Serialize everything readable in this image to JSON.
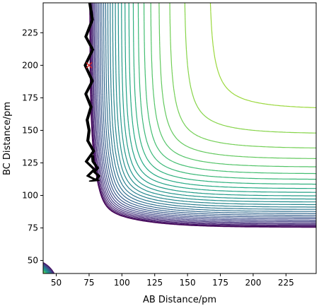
{
  "chart_data": {
    "type": "contour",
    "title": "",
    "xlabel": "AB Distance/pm",
    "ylabel": "BC Distance/pm",
    "xlim": [
      40,
      248
    ],
    "ylim": [
      40,
      248
    ],
    "xticks": [
      "50",
      "75",
      "100",
      "125",
      "150",
      "175",
      "200",
      "225"
    ],
    "yticks": [
      "50",
      "75",
      "100",
      "125",
      "150",
      "175",
      "200",
      "225"
    ],
    "colormap": "viridis",
    "contour_levels": 34,
    "surface": {
      "description": "LEPS-like potential energy surface: two valleys along AB≈75 pm and BC≈75 pm joined by a saddle near (88, 84)",
      "valley_minimum_pm": 75,
      "saddle_point_pm": [
        88,
        84
      ]
    },
    "trajectory": {
      "name": "",
      "color": "#000000",
      "x": [
        75.5,
        77.5,
        72.5,
        77.8,
        72.0,
        77.5,
        72.5,
        76.5,
        73.5,
        75.0,
        74.0,
        78.5,
        72.8,
        79.0,
        74.0,
        80.0,
        76.0,
        82.0,
        80.5,
        82.5,
        79.0,
        81.5,
        78.0,
        77.5
      ],
      "y": [
        248,
        235,
        222,
        212,
        200,
        188,
        178,
        168,
        158,
        150,
        142,
        134,
        126,
        120,
        115,
        112,
        111,
        111.5,
        112,
        115,
        118,
        121,
        126,
        131
      ]
    },
    "start_marker": {
      "x": 75,
      "y": 200,
      "color": "#d62728",
      "symbol": "x"
    }
  }
}
